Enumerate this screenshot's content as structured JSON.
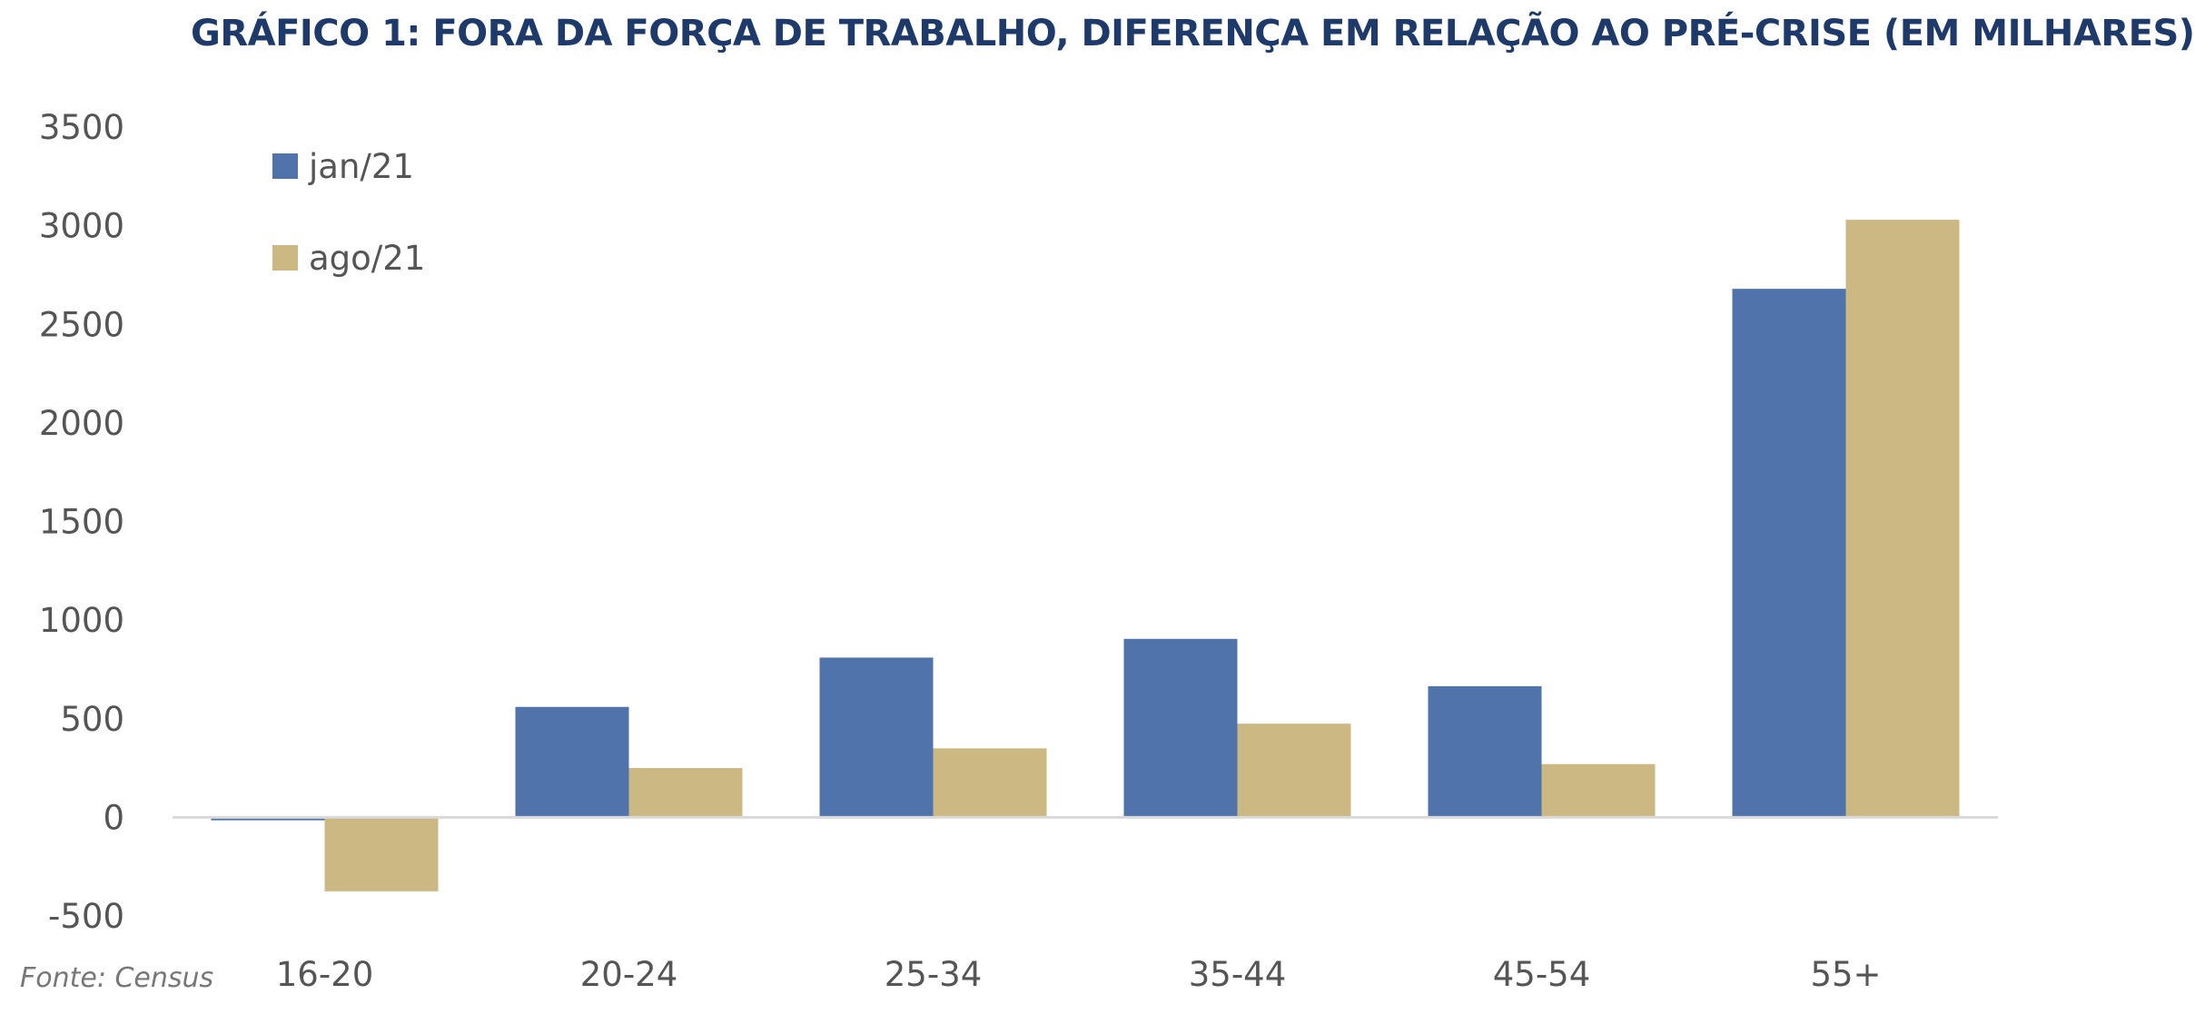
{
  "chart_data": {
    "type": "bar",
    "title": "GRÁFICO 1: FORA DA FORÇA DE TRABALHO, DIFERENÇA EM RELAÇÃO AO PRÉ-CRISE (EM MILHARES)",
    "categories": [
      "16-20",
      "20-24",
      "25-34",
      "35-44",
      "45-54",
      "55+"
    ],
    "series": [
      {
        "name": "jan/21",
        "color": "#5073ab",
        "values": [
          -15,
          560,
          810,
          905,
          665,
          2680
        ]
      },
      {
        "name": "ago/21",
        "color": "#ccb882",
        "values": [
          -375,
          250,
          350,
          475,
          270,
          3030
        ]
      }
    ],
    "ylim": [
      -500,
      3500
    ],
    "yticks": [
      -500,
      0,
      500,
      1000,
      1500,
      2000,
      2500,
      3000,
      3500
    ],
    "grid": false,
    "legend_position": "top-left"
  },
  "source_note": "Fonte: Census"
}
